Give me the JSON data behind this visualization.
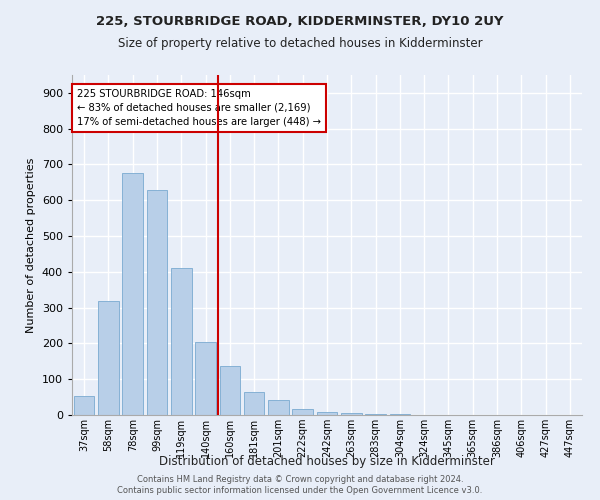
{
  "title1": "225, STOURBRIDGE ROAD, KIDDERMINSTER, DY10 2UY",
  "title2": "Size of property relative to detached houses in Kidderminster",
  "xlabel": "Distribution of detached houses by size in Kidderminster",
  "ylabel": "Number of detached properties",
  "categories": [
    "37sqm",
    "58sqm",
    "78sqm",
    "99sqm",
    "119sqm",
    "140sqm",
    "160sqm",
    "181sqm",
    "201sqm",
    "222sqm",
    "242sqm",
    "263sqm",
    "283sqm",
    "304sqm",
    "324sqm",
    "345sqm",
    "365sqm",
    "386sqm",
    "406sqm",
    "427sqm",
    "447sqm"
  ],
  "values": [
    52,
    318,
    676,
    628,
    412,
    204,
    138,
    65,
    42,
    18,
    9,
    5,
    3,
    2,
    1,
    1,
    0,
    0,
    0,
    0,
    0
  ],
  "bar_color": "#b8cfe8",
  "bar_edge_color": "#7aaad0",
  "vline_x": 5.5,
  "vline_color": "#cc0000",
  "annotation_text": "225 STOURBRIDGE ROAD: 146sqm\n← 83% of detached houses are smaller (2,169)\n17% of semi-detached houses are larger (448) →",
  "annotation_box_color": "#ffffff",
  "annotation_box_edge_color": "#cc0000",
  "ylim": [
    0,
    950
  ],
  "yticks": [
    0,
    100,
    200,
    300,
    400,
    500,
    600,
    700,
    800,
    900
  ],
  "footnote1": "Contains HM Land Registry data © Crown copyright and database right 2024.",
  "footnote2": "Contains public sector information licensed under the Open Government Licence v3.0.",
  "bg_color": "#e8eef8",
  "grid_color": "#ffffff"
}
